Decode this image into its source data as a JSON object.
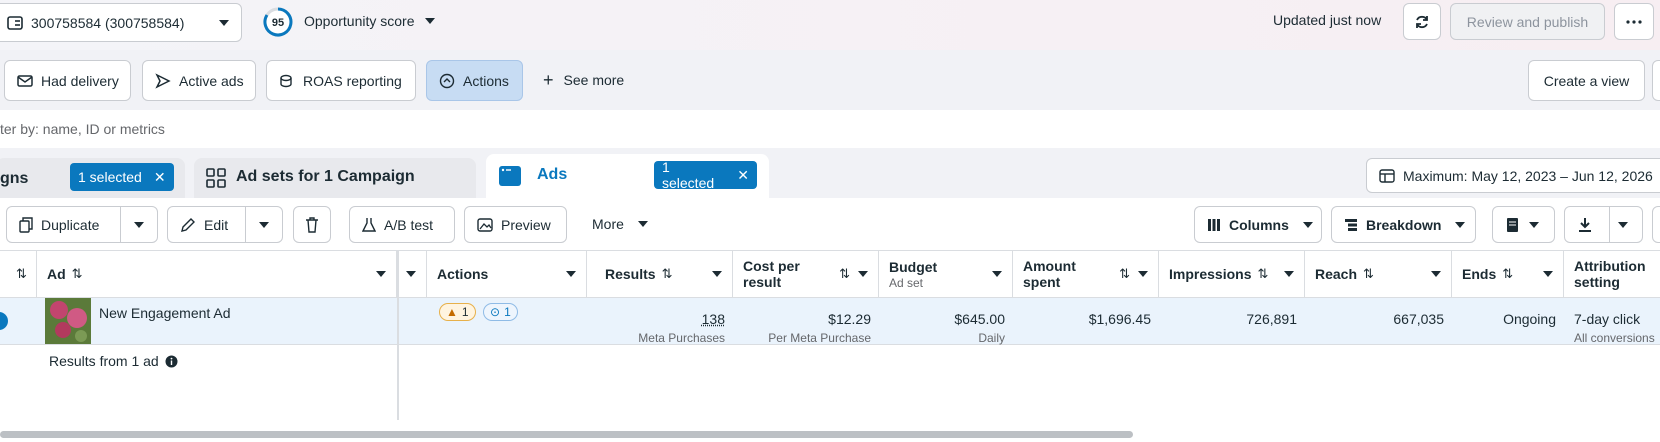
{
  "top_bar": {
    "account": "300758584 (300758584)",
    "score": "95",
    "score_label": "Opportunity score",
    "status": "Updated just now",
    "publish": "Review and publish"
  },
  "filters": {
    "items": [
      "Had delivery",
      "Active ads",
      "ROAS reporting",
      "Actions",
      "See more"
    ],
    "create_view": "Create a view"
  },
  "search": {
    "placeholder": "ter by: name, ID or metrics"
  },
  "tabs": {
    "campaigns": {
      "label": "gns",
      "selected": "1 selected"
    },
    "ad_sets": {
      "label": "Ad sets for 1 Campaign"
    },
    "ads": {
      "label": "Ads",
      "selected": "1 selected"
    },
    "date_range": "Maximum: May 12, 2023 – Jun 12, 2026"
  },
  "toolbar": {
    "duplicate": "Duplicate",
    "edit": "Edit",
    "ab_test": "A/B test",
    "preview": "Preview",
    "more": "More",
    "columns": "Columns",
    "breakdown": "Breakdown"
  },
  "table": {
    "headers": {
      "ad": "Ad",
      "actions": "Actions",
      "results": "Results",
      "cost": "Cost per result",
      "budget": "Budget",
      "budget_sub": "Ad set",
      "spent": "Amount spent",
      "impressions": "Impressions",
      "reach": "Reach",
      "ends": "Ends",
      "attribution": "Attribution setting"
    },
    "row": {
      "name": "New Engagement Ad",
      "warnings": "1",
      "actions": "1",
      "results": "138",
      "results_sub": "Meta Purchases",
      "cost": "$12.29",
      "cost_sub": "Per Meta Purchase",
      "budget": "$645.00",
      "budget_sub": "Daily",
      "spent": "$1,696.45",
      "impressions": "726,891",
      "reach": "667,035",
      "ends": "Ongoing",
      "attribution": "7-day click",
      "attribution_sub": "All conversions"
    },
    "footer": "Results from 1 ad"
  }
}
